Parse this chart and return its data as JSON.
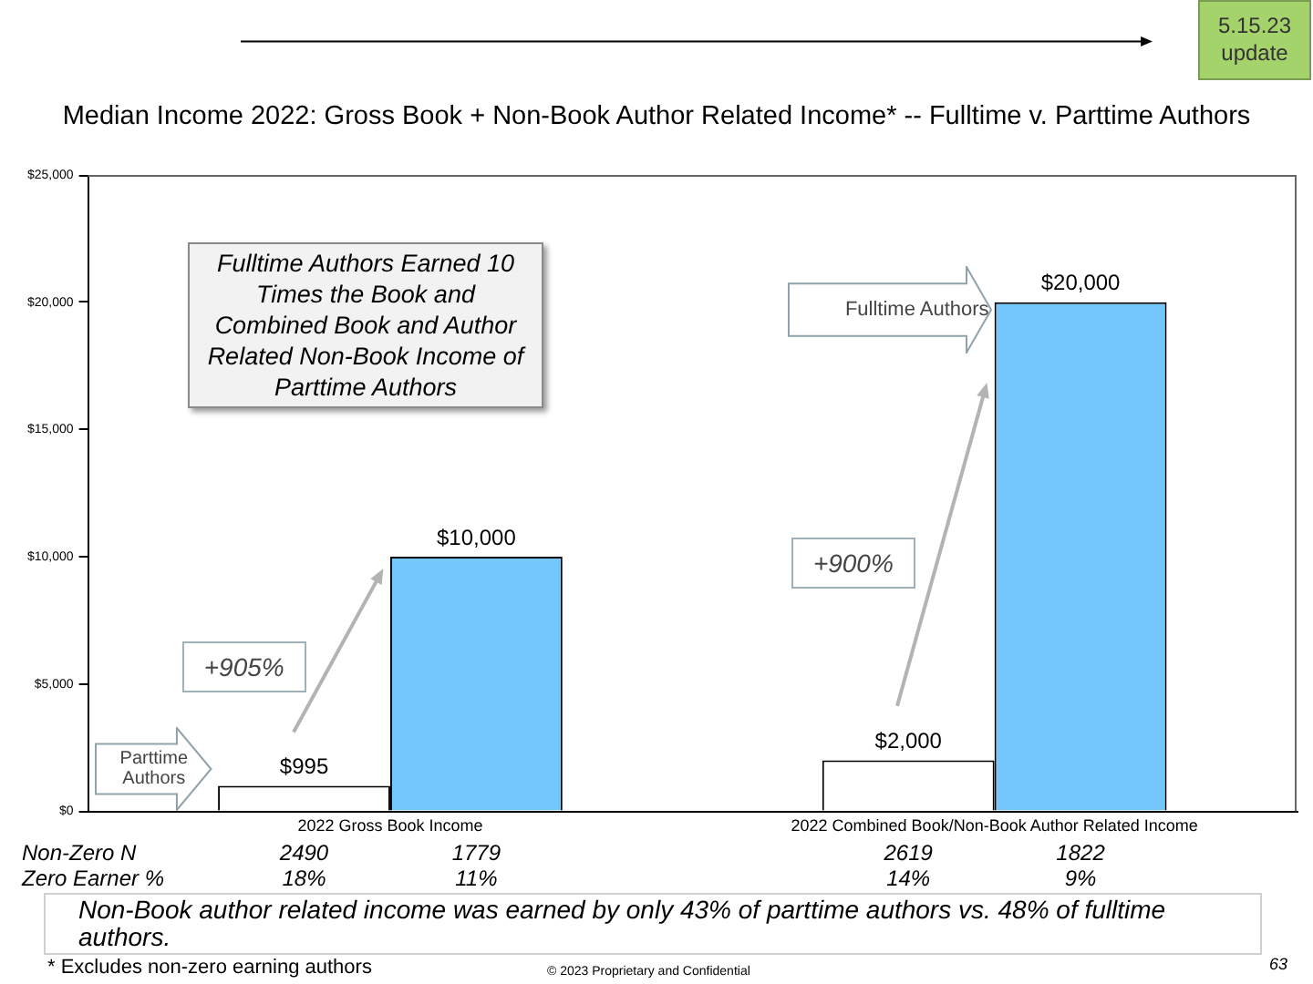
{
  "chart_data": {
    "type": "bar",
    "title": "Median Income 2022: Gross Book + Non-Book Author Related Income* -- Fulltime v. Parttime Authors",
    "categories": [
      "2022 Gross Book Income",
      "2022 Combined Book/Non-Book Author Related Income"
    ],
    "series": [
      {
        "name": "Parttime Authors",
        "color": "#ffffff",
        "values": [
          995,
          2000
        ],
        "value_labels": [
          "$995",
          "$2,000"
        ]
      },
      {
        "name": "Fulltime Authors",
        "color": "#74c7fc",
        "values": [
          10000,
          20000
        ],
        "value_labels": [
          "$10,000",
          "$20,000"
        ]
      }
    ],
    "ylim": [
      0,
      25000
    ],
    "yticks": [
      {
        "value": 0,
        "label": "$0"
      },
      {
        "value": 5000,
        "label": "$5,000"
      },
      {
        "value": 10000,
        "label": "$10,000"
      },
      {
        "value": 15000,
        "label": "$15,000"
      },
      {
        "value": 20000,
        "label": "$20,000"
      },
      {
        "value": 25000,
        "label": "$25,000"
      }
    ],
    "grid": false,
    "legend": false,
    "annotations": [
      "5.15.23 update",
      "Fulltime Authors Earned 10 Times the Book and Combined Book and Author Related Non-Book Income of Parttime Authors",
      "+905%",
      "+900%",
      "Non-Zero N",
      "2490",
      "1779",
      "2619",
      "1822",
      "Zero Earner %",
      "18%",
      "11%",
      "14%",
      "9%",
      "Non-Book author related income was earned by only 43% of parttime authors vs. 48% of fulltime authors.",
      "* Excludes non-zero earning authors",
      "© 2023 Proprietary and Confidential",
      "63"
    ]
  }
}
